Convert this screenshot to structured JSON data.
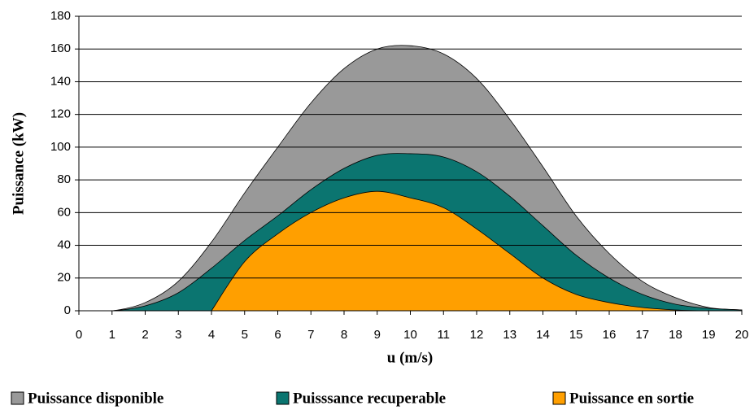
{
  "chart_data": {
    "type": "area",
    "xlabel": "u (m/s)",
    "ylabel": "Puissance (kW)",
    "x": [
      0,
      1,
      2,
      3,
      4,
      5,
      6,
      7,
      8,
      9,
      10,
      11,
      12,
      13,
      14,
      15,
      16,
      17,
      18,
      19,
      20
    ],
    "series": [
      {
        "name": "Puissance disponible",
        "color": "#999999",
        "values": [
          0,
          0,
          5,
          18,
          42,
          72,
          100,
          127,
          148,
          160,
          162,
          157,
          142,
          117,
          88,
          58,
          35,
          18,
          8,
          2,
          0.5
        ]
      },
      {
        "name": "Puisssance recuperable",
        "color": "#0b7570",
        "values": [
          0,
          0,
          3,
          11,
          26,
          43,
          58,
          74,
          87,
          95,
          96,
          94,
          85,
          70,
          52,
          34,
          20,
          10,
          4,
          1.5,
          0.5
        ]
      },
      {
        "name": "Puissance en sortie",
        "color": "#ff9f00",
        "values": [
          null,
          null,
          null,
          null,
          0,
          30,
          47,
          60,
          69,
          73,
          69,
          63,
          50,
          35,
          20,
          10,
          5,
          2,
          0.5,
          0,
          0
        ]
      }
    ],
    "xlim": [
      0,
      20
    ],
    "xticks": [
      0,
      1,
      2,
      3,
      4,
      5,
      6,
      7,
      8,
      9,
      10,
      11,
      12,
      13,
      14,
      15,
      16,
      17,
      18,
      19,
      20
    ],
    "ylim": [
      0,
      180
    ],
    "yticks": [
      0,
      20,
      40,
      60,
      80,
      100,
      120,
      140,
      160,
      180
    ],
    "grid": true,
    "legend": "bottom"
  }
}
